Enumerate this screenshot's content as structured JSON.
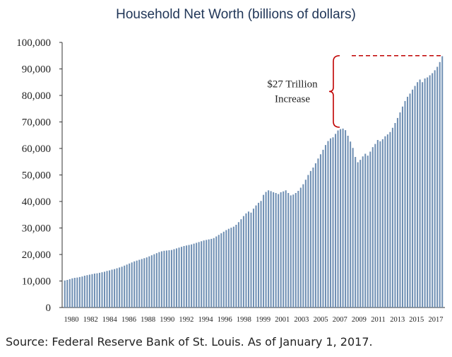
{
  "chart_data": {
    "type": "bar",
    "title": "Household Net Worth (billions of dollars)",
    "xlabel": "",
    "ylabel": "",
    "ylim": [
      0,
      100000
    ],
    "yticks": [
      0,
      10000,
      20000,
      30000,
      40000,
      50000,
      60000,
      70000,
      80000,
      90000,
      100000
    ],
    "ytick_labels": [
      "0",
      "10,000",
      "20,000",
      "30,000",
      "40,000",
      "50,000",
      "60,000",
      "70,000",
      "80,000",
      "90,000",
      "100,000"
    ],
    "xtick_labels": [
      "1980",
      "1982",
      "1984",
      "1986",
      "1988",
      "1990",
      "1992",
      "1994",
      "1996",
      "1998",
      "1999",
      "2001",
      "2003",
      "2005",
      "2007",
      "2009",
      "2011",
      "2013",
      "2015",
      "2017"
    ],
    "grid": false,
    "bar_color": "#6f8fb3",
    "series": [
      {
        "name": "",
        "x_start_year": 1980,
        "frequency": "quarterly",
        "values": [
          10200,
          10400,
          10700,
          11000,
          11200,
          11300,
          11500,
          11700,
          12000,
          12200,
          12400,
          12600,
          12800,
          12900,
          13100,
          13300,
          13500,
          13800,
          14000,
          14300,
          14500,
          14800,
          15100,
          15400,
          15800,
          16200,
          16600,
          17000,
          17400,
          17700,
          18000,
          18300,
          18600,
          18900,
          19300,
          19700,
          20100,
          20500,
          20900,
          21200,
          21400,
          21500,
          21600,
          21700,
          22000,
          22300,
          22600,
          22900,
          23200,
          23400,
          23600,
          23800,
          24100,
          24400,
          24700,
          25000,
          25300,
          25500,
          25700,
          25900,
          26200,
          26800,
          27400,
          28000,
          28600,
          29200,
          29700,
          30100,
          30500,
          31200,
          32200,
          33300,
          34500,
          35500,
          36200,
          35800,
          37300,
          38500,
          39500,
          40200,
          42500,
          43600,
          44200,
          43900,
          43500,
          43200,
          42800,
          43500,
          43800,
          44200,
          43200,
          42300,
          42600,
          43200,
          44000,
          45200,
          46500,
          48200,
          50000,
          51500,
          52800,
          54400,
          56200,
          57800,
          59500,
          61300,
          62800,
          63800,
          64200,
          65500,
          66800,
          67300,
          67500,
          66900,
          64800,
          62600,
          60200,
          56800,
          54800,
          55700,
          57000,
          58000,
          57300,
          58800,
          60500,
          61700,
          63200,
          62700,
          63500,
          64600,
          65300,
          66200,
          67800,
          69600,
          71500,
          73600,
          75800,
          77900,
          79500,
          80700,
          82200,
          83600,
          85000,
          86000,
          85000,
          86400,
          86800,
          87600,
          88400,
          89500,
          90800,
          92600,
          94800
        ]
      }
    ],
    "annotation": {
      "lines": [
        "$27 Trillion",
        "Increase"
      ],
      "from_value": 68000,
      "to_value": 95000
    },
    "annotation_color": "#c00000"
  },
  "source_text": "Source: Federal Reserve Bank of St. Louis. As of January 1, 2017."
}
